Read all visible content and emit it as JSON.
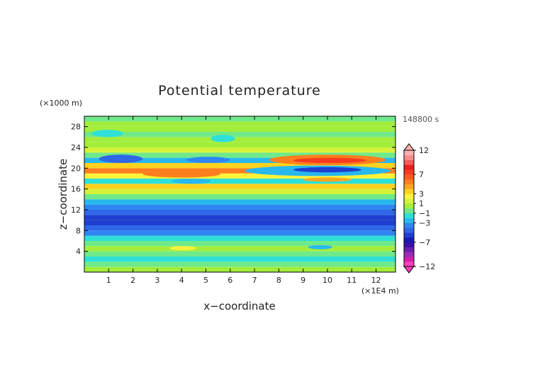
{
  "chart_data": {
    "type": "heatmap",
    "title": "Potential temperature",
    "xlabel": "x−coordinate",
    "ylabel": "z−coordinate",
    "x_unit": "(×1E4 m)",
    "y_unit": "(×1000 m)",
    "time_label": "148800 s",
    "xlim": [
      0,
      12.8
    ],
    "ylim": [
      0,
      30
    ],
    "x_ticks": [
      1,
      2,
      3,
      4,
      5,
      6,
      7,
      8,
      9,
      10,
      11,
      12
    ],
    "y_ticks": [
      4,
      8,
      12,
      16,
      20,
      24,
      28
    ],
    "grid": false,
    "colorbar": {
      "levels": [
        -12,
        -11,
        -10,
        -9,
        -8,
        -7,
        -6,
        -5,
        -4,
        -3,
        -2,
        -1,
        0,
        1,
        2,
        3,
        4,
        5,
        6,
        7,
        8,
        9,
        10,
        11,
        12
      ],
      "labels": [
        12,
        7,
        3,
        1,
        -1,
        -3,
        -7,
        -12
      ],
      "colors": [
        "#ff3fbf",
        "#d41fb0",
        "#a02ab8",
        "#6a1fb0",
        "#3b0ea8",
        "#1a1ab4",
        "#1f3fd0",
        "#2f67e6",
        "#2f86f2",
        "#28b8ee",
        "#2ee0d8",
        "#6fe98a",
        "#a3ee3c",
        "#d4f23a",
        "#fff23a",
        "#ffd21e",
        "#ffa51e",
        "#ff7f1e",
        "#ff5a1e",
        "#f83a1e",
        "#e82020",
        "#f55a5a",
        "#f88a8a",
        "#fbb0b0"
      ],
      "extend": "both"
    },
    "bands": [
      {
        "z_from": 0.0,
        "z_to": 1.0,
        "value": 0.5
      },
      {
        "z_from": 1.0,
        "z_to": 2.0,
        "value": -0.3
      },
      {
        "z_from": 2.0,
        "z_to": 3.0,
        "value": -1.4
      },
      {
        "z_from": 3.0,
        "z_to": 4.0,
        "value": -0.4
      },
      {
        "z_from": 4.0,
        "z_to": 5.0,
        "value": 0.4
      },
      {
        "z_from": 5.0,
        "z_to": 6.0,
        "value": -0.8
      },
      {
        "z_from": 6.0,
        "z_to": 7.0,
        "value": -1.8
      },
      {
        "z_from": 7.0,
        "z_to": 8.0,
        "value": -3.2
      },
      {
        "z_from": 8.0,
        "z_to": 9.0,
        "value": -4.6
      },
      {
        "z_from": 9.0,
        "z_to": 10.0,
        "value": -5.2
      },
      {
        "z_from": 10.0,
        "z_to": 11.0,
        "value": -5.3
      },
      {
        "z_from": 11.0,
        "z_to": 12.0,
        "value": -4.8
      },
      {
        "z_from": 12.0,
        "z_to": 13.0,
        "value": -3.6
      },
      {
        "z_from": 13.0,
        "z_to": 14.0,
        "value": -2.2
      },
      {
        "z_from": 14.0,
        "z_to": 15.0,
        "value": -0.6
      },
      {
        "z_from": 15.0,
        "z_to": 16.0,
        "value": 1.4
      },
      {
        "z_from": 16.0,
        "z_to": 17.0,
        "value": 3.2
      },
      {
        "z_from": 17.0,
        "z_to": 18.0,
        "value": -1.5
      },
      {
        "z_from": 18.0,
        "z_to": 19.0,
        "value": 2.8
      },
      {
        "z_from": 19.0,
        "z_to": 20.0,
        "value": 5.6
      },
      {
        "z_from": 20.0,
        "z_to": 21.0,
        "value": 3.4
      },
      {
        "z_from": 21.0,
        "z_to": 22.0,
        "value": -2.4
      },
      {
        "z_from": 22.0,
        "z_to": 23.0,
        "value": -0.5
      },
      {
        "z_from": 23.0,
        "z_to": 24.0,
        "value": 1.8
      },
      {
        "z_from": 24.0,
        "z_to": 25.0,
        "value": 0.9
      },
      {
        "z_from": 25.0,
        "z_to": 26.0,
        "value": 0.2
      },
      {
        "z_from": 26.0,
        "z_to": 27.0,
        "value": -0.5
      },
      {
        "z_from": 27.0,
        "z_to": 28.0,
        "value": 0.6
      },
      {
        "z_from": 28.0,
        "z_to": 29.0,
        "value": 0.4
      },
      {
        "z_from": 29.0,
        "z_to": 30.0,
        "value": -0.4
      }
    ],
    "features": [
      {
        "x_from": 6.6,
        "x_to": 12.6,
        "z_from": 18.5,
        "z_to": 20.5,
        "value": -2.2
      },
      {
        "x_from": 8.6,
        "x_to": 11.4,
        "z_from": 19.2,
        "z_to": 20.2,
        "value": -5.5
      },
      {
        "x_from": 7.6,
        "x_to": 12.4,
        "z_from": 20.6,
        "z_to": 22.6,
        "value": 5.6
      },
      {
        "x_from": 8.6,
        "x_to": 11.6,
        "z_from": 21.0,
        "z_to": 22.0,
        "value": 7.6
      },
      {
        "x_from": 0.6,
        "x_to": 2.4,
        "z_from": 21.0,
        "z_to": 22.6,
        "value": -4.6
      },
      {
        "x_from": 2.4,
        "x_to": 5.6,
        "z_from": 18.2,
        "z_to": 19.6,
        "value": 5.8
      },
      {
        "x_from": 4.2,
        "x_to": 6.0,
        "z_from": 21.0,
        "z_to": 22.2,
        "value": -3.6
      },
      {
        "x_from": 9.0,
        "x_to": 11.0,
        "z_from": 17.4,
        "z_to": 18.2,
        "value": 4.0
      },
      {
        "x_from": 3.6,
        "x_to": 5.2,
        "z_from": 17.0,
        "z_to": 18.0,
        "value": -2.8
      },
      {
        "x_from": 3.5,
        "x_to": 4.6,
        "z_from": 4.2,
        "z_to": 5.0,
        "value": 2.0
      },
      {
        "x_from": 9.2,
        "x_to": 10.2,
        "z_from": 4.4,
        "z_to": 5.2,
        "value": -2.2
      },
      {
        "x_from": 5.2,
        "x_to": 6.2,
        "z_from": 25.0,
        "z_to": 26.4,
        "value": -1.2
      },
      {
        "x_from": 0.3,
        "x_to": 1.6,
        "z_from": 26.0,
        "z_to": 27.4,
        "value": -1.4
      }
    ]
  }
}
